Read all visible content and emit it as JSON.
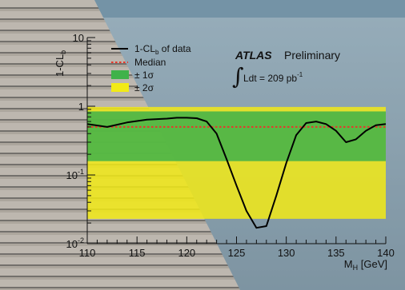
{
  "colors": {
    "sigma2_band": "#f2ea16",
    "sigma1_band": "#3fb24a",
    "median_line": "#e8372a",
    "observed_line": "#000000"
  },
  "experiment": {
    "name": "ATLAS",
    "status": "Preliminary",
    "luminosity": "Ldt = 209 pb",
    "luminosity_exponent": "-1"
  },
  "chart_data": {
    "type": "line",
    "xlabel_main": "M",
    "xlabel_sub": "H",
    "xlabel_unit": " [GeV]",
    "ylabel_main": "1-CL",
    "ylabel_sub": "b",
    "x_range": [
      110,
      140
    ],
    "y_range": [
      0.01,
      10
    ],
    "y_scale": "log",
    "x_ticks": [
      "110",
      "115",
      "120",
      "125",
      "130",
      "135",
      "140"
    ],
    "x_tick_values": [
      110,
      115,
      120,
      125,
      130,
      135,
      140
    ],
    "y_ticks": [
      {
        "value": 0.01,
        "base": "10",
        "exp": "-2"
      },
      {
        "value": 0.1,
        "base": "10",
        "exp": "-1"
      },
      {
        "value": 1,
        "base": "1",
        "exp": ""
      },
      {
        "value": 10,
        "base": "10",
        "exp": ""
      }
    ],
    "legend": {
      "observed": {
        "main": "1-CL",
        "sub": "b",
        "rest": " of data"
      },
      "median": "Median",
      "sigma1": "± 1σ",
      "sigma2": "± 2σ"
    },
    "median_value": 0.5,
    "sigma1_band": [
      0.159,
      0.841
    ],
    "sigma2_band": [
      0.023,
      0.977
    ],
    "observed": {
      "x": [
        110,
        112,
        114,
        116,
        118,
        119,
        120,
        121,
        122,
        123,
        124,
        125,
        126,
        127,
        128,
        129,
        130,
        131,
        132,
        133,
        134,
        135,
        136,
        137,
        138,
        139,
        140
      ],
      "y": [
        0.55,
        0.5,
        0.58,
        0.64,
        0.66,
        0.68,
        0.68,
        0.67,
        0.6,
        0.4,
        0.17,
        0.07,
        0.03,
        0.017,
        0.018,
        0.05,
        0.15,
        0.38,
        0.57,
        0.6,
        0.55,
        0.44,
        0.3,
        0.33,
        0.44,
        0.53,
        0.55
      ]
    }
  }
}
